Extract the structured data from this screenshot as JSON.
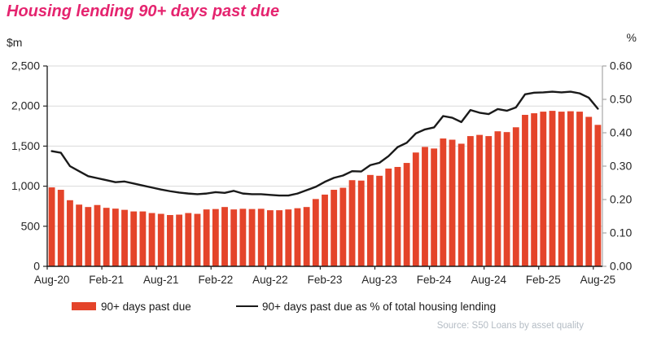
{
  "title": "Housing lending 90+ days past due",
  "axis_units": {
    "left": "$m",
    "right": "%"
  },
  "legend": {
    "bars_label": "90+ days past due",
    "line_label": "90+ days past due as % of total housing lending"
  },
  "source_text": "Source:  S50 Loans by asset quality",
  "colors": {
    "title": "#e5246f",
    "bar": "#e4442a",
    "line": "#1a1a1a",
    "grid": "#dadada",
    "axis_dark": "#262626",
    "axis_right": "#a6a6a6",
    "tick_text": "#262626",
    "source_text": "#b4bcc4"
  },
  "chart_data": {
    "type": "bar+line",
    "title": "Housing lending 90+ days past due",
    "xlabel": "",
    "ylabel_left": "$m",
    "ylabel_right": "%",
    "ylim_left": [
      0,
      2500
    ],
    "ylim_right": [
      0.0,
      0.6
    ],
    "grid": "horizontal-left-axis",
    "legend_position": "bottom",
    "y_left_ticks": [
      "0",
      "500",
      "1,000",
      "1,500",
      "2,000",
      "2,500"
    ],
    "y_left_tick_values": [
      0,
      500,
      1000,
      1500,
      2000,
      2500
    ],
    "y_right_ticks": [
      "0.00",
      "0.10",
      "0.20",
      "0.30",
      "0.40",
      "0.50",
      "0.60"
    ],
    "y_right_tick_values": [
      0.0,
      0.1,
      0.2,
      0.3,
      0.4,
      0.5,
      0.6
    ],
    "x_tick_labels": [
      "Aug-20",
      "Feb-21",
      "Aug-21",
      "Feb-22",
      "Aug-22",
      "Feb-23",
      "Aug-23",
      "Feb-24",
      "Aug-24",
      "Feb-25",
      "Aug-25"
    ],
    "x_tick_every": 6,
    "categories": [
      "Aug-20",
      "Sep-20",
      "Oct-20",
      "Nov-20",
      "Dec-20",
      "Jan-21",
      "Feb-21",
      "Mar-21",
      "Apr-21",
      "May-21",
      "Jun-21",
      "Jul-21",
      "Aug-21",
      "Sep-21",
      "Oct-21",
      "Nov-21",
      "Dec-21",
      "Jan-22",
      "Feb-22",
      "Mar-22",
      "Apr-22",
      "May-22",
      "Jun-22",
      "Jul-22",
      "Aug-22",
      "Sep-22",
      "Oct-22",
      "Nov-22",
      "Dec-22",
      "Jan-23",
      "Feb-23",
      "Mar-23",
      "Apr-23",
      "May-23",
      "Jun-23",
      "Jul-23",
      "Aug-23",
      "Sep-23",
      "Oct-23",
      "Nov-23",
      "Dec-23",
      "Jan-24",
      "Feb-24",
      "Mar-24",
      "Apr-24",
      "May-24",
      "Jun-24",
      "Jul-24",
      "Aug-24",
      "Sep-24",
      "Oct-24",
      "Nov-24",
      "Dec-24",
      "Jan-25",
      "Feb-25",
      "Mar-25",
      "Apr-25",
      "May-25",
      "Jun-25",
      "Jul-25",
      "Aug-25"
    ],
    "series": [
      {
        "name": "90+ days past due",
        "type": "bar",
        "axis": "left",
        "unit": "$m",
        "values": [
          985,
          955,
          825,
          770,
          740,
          765,
          730,
          720,
          705,
          685,
          685,
          665,
          655,
          640,
          645,
          665,
          655,
          710,
          715,
          740,
          710,
          718,
          715,
          718,
          700,
          700,
          710,
          725,
          740,
          840,
          895,
          955,
          980,
          1075,
          1070,
          1140,
          1130,
          1220,
          1240,
          1290,
          1420,
          1490,
          1470,
          1595,
          1580,
          1530,
          1625,
          1640,
          1625,
          1685,
          1675,
          1735,
          1890,
          1910,
          1930,
          1940,
          1930,
          1935,
          1930,
          1865,
          1765
        ]
      },
      {
        "name": "90+ days past due as % of total housing lending",
        "type": "line",
        "axis": "right",
        "unit": "%",
        "values": [
          0.345,
          0.34,
          0.3,
          0.285,
          0.27,
          0.264,
          0.258,
          0.252,
          0.254,
          0.248,
          0.242,
          0.236,
          0.23,
          0.225,
          0.221,
          0.218,
          0.216,
          0.218,
          0.222,
          0.22,
          0.226,
          0.218,
          0.216,
          0.216,
          0.214,
          0.212,
          0.212,
          0.218,
          0.228,
          0.238,
          0.253,
          0.265,
          0.272,
          0.285,
          0.284,
          0.303,
          0.31,
          0.33,
          0.357,
          0.37,
          0.398,
          0.41,
          0.416,
          0.45,
          0.445,
          0.432,
          0.468,
          0.46,
          0.456,
          0.471,
          0.466,
          0.476,
          0.515,
          0.52,
          0.521,
          0.523,
          0.521,
          0.523,
          0.518,
          0.505,
          0.472
        ]
      }
    ]
  }
}
